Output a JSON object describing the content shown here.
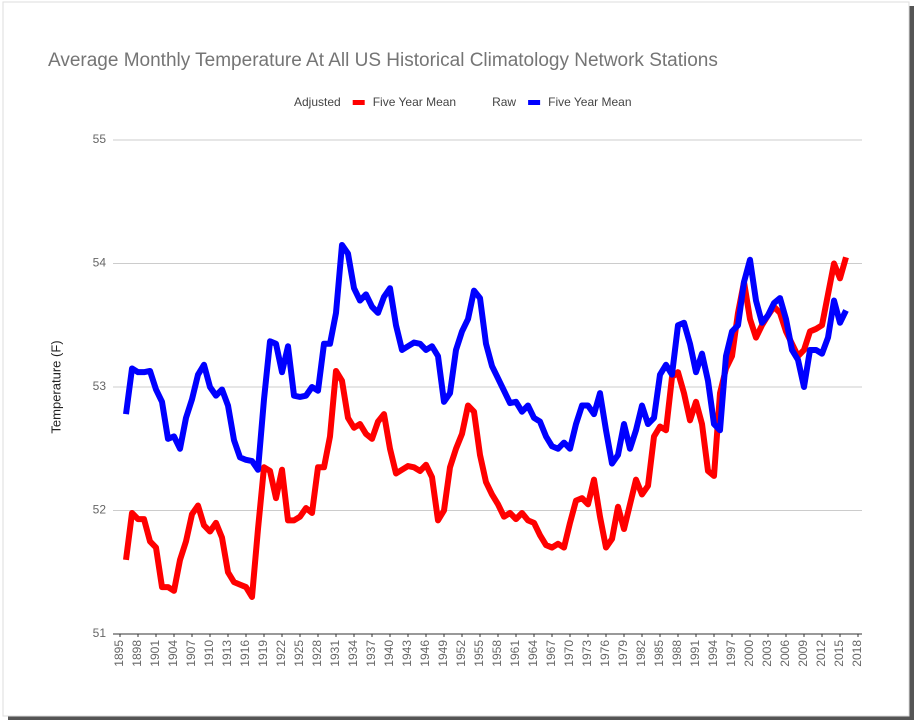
{
  "chart_data": {
    "type": "line",
    "title": "Average Monthly Temperature At All US Historical Climatology Network Stations",
    "y_label": "Temperature (F)",
    "x": [
      1896,
      1897,
      1898,
      1899,
      1900,
      1901,
      1902,
      1903,
      1904,
      1905,
      1906,
      1907,
      1908,
      1909,
      1910,
      1911,
      1912,
      1913,
      1914,
      1915,
      1916,
      1917,
      1918,
      1919,
      1920,
      1921,
      1922,
      1923,
      1924,
      1925,
      1926,
      1927,
      1928,
      1929,
      1930,
      1931,
      1932,
      1933,
      1934,
      1935,
      1936,
      1937,
      1938,
      1939,
      1940,
      1941,
      1942,
      1943,
      1944,
      1945,
      1946,
      1947,
      1948,
      1949,
      1950,
      1951,
      1952,
      1953,
      1954,
      1955,
      1956,
      1957,
      1958,
      1959,
      1960,
      1961,
      1962,
      1963,
      1964,
      1965,
      1966,
      1967,
      1968,
      1969,
      1970,
      1971,
      1972,
      1973,
      1974,
      1975,
      1976,
      1977,
      1978,
      1979,
      1980,
      1981,
      1982,
      1983,
      1984,
      1985,
      1986,
      1987,
      1988,
      1989,
      1990,
      1991,
      1992,
      1993,
      1994,
      1995,
      1996,
      1997,
      1998,
      1999,
      2000,
      2001,
      2002,
      2003,
      2004,
      2005,
      2006,
      2007,
      2008,
      2009,
      2010,
      2011,
      2012,
      2013,
      2014,
      2015,
      2016
    ],
    "series": [
      {
        "group": "Adjusted",
        "name": "Five Year Mean",
        "color": "#ff0000",
        "values": [
          51.6,
          51.98,
          51.93,
          51.93,
          51.75,
          51.7,
          51.38,
          51.38,
          51.35,
          51.6,
          51.75,
          51.97,
          52.04,
          51.88,
          51.83,
          51.9,
          51.78,
          51.5,
          51.42,
          51.4,
          51.38,
          51.3,
          51.85,
          52.35,
          52.32,
          52.1,
          52.33,
          51.92,
          51.92,
          51.95,
          52.02,
          51.98,
          52.35,
          52.35,
          52.6,
          53.13,
          53.05,
          52.75,
          52.67,
          52.7,
          52.62,
          52.58,
          52.72,
          52.78,
          52.5,
          52.3,
          52.33,
          52.36,
          52.35,
          52.32,
          52.37,
          52.27,
          51.92,
          52.0,
          52.35,
          52.5,
          52.62,
          52.85,
          52.8,
          52.45,
          52.23,
          52.13,
          52.05,
          51.95,
          51.98,
          51.93,
          51.98,
          51.92,
          51.9,
          51.8,
          51.72,
          51.7,
          51.73,
          51.7,
          51.9,
          52.08,
          52.1,
          52.05,
          52.25,
          51.95,
          51.7,
          51.77,
          52.03,
          51.85,
          52.05,
          52.25,
          52.13,
          52.2,
          52.6,
          52.68,
          52.65,
          53.08,
          53.12,
          52.95,
          52.73,
          52.88,
          52.7,
          52.32,
          52.28,
          52.95,
          53.15,
          53.25,
          53.6,
          53.85,
          53.55,
          53.4,
          53.5,
          53.58,
          53.65,
          53.6,
          53.45,
          53.35,
          53.25,
          53.3,
          53.45,
          53.47,
          53.5,
          53.75,
          54.0,
          53.88,
          54.05
        ]
      },
      {
        "group": "Raw",
        "name": "Five Year Mean",
        "color": "#0000ff",
        "values": [
          52.78,
          53.15,
          53.12,
          53.12,
          53.13,
          52.98,
          52.88,
          52.58,
          52.6,
          52.5,
          52.75,
          52.9,
          53.1,
          53.18,
          53.0,
          52.93,
          52.98,
          52.85,
          52.57,
          52.43,
          52.41,
          52.4,
          52.33,
          52.9,
          53.37,
          53.35,
          53.12,
          53.33,
          52.93,
          52.92,
          52.93,
          53.0,
          52.97,
          53.35,
          53.35,
          53.6,
          54.15,
          54.08,
          53.8,
          53.7,
          53.75,
          53.65,
          53.6,
          53.73,
          53.8,
          53.5,
          53.3,
          53.33,
          53.36,
          53.35,
          53.3,
          53.33,
          53.25,
          52.88,
          52.95,
          53.3,
          53.45,
          53.55,
          53.78,
          53.72,
          53.35,
          53.17,
          53.07,
          52.97,
          52.87,
          52.88,
          52.8,
          52.85,
          52.75,
          52.72,
          52.6,
          52.52,
          52.5,
          52.55,
          52.5,
          52.7,
          52.85,
          52.85,
          52.78,
          52.95,
          52.65,
          52.38,
          52.45,
          52.7,
          52.5,
          52.65,
          52.85,
          52.7,
          52.75,
          53.1,
          53.18,
          53.1,
          53.5,
          53.52,
          53.35,
          53.12,
          53.27,
          53.05,
          52.7,
          52.65,
          53.25,
          53.45,
          53.5,
          53.85,
          54.03,
          53.7,
          53.52,
          53.58,
          53.68,
          53.72,
          53.55,
          53.3,
          53.22,
          53.0,
          53.3,
          53.3,
          53.27,
          53.4,
          53.7,
          53.52,
          53.62
        ]
      }
    ],
    "xlim": [
      1895,
      2018
    ],
    "xticks": [
      1895,
      1898,
      1901,
      1904,
      1907,
      1910,
      1913,
      1916,
      1919,
      1922,
      1925,
      1928,
      1931,
      1934,
      1937,
      1940,
      1943,
      1946,
      1949,
      1952,
      1955,
      1958,
      1961,
      1964,
      1967,
      1970,
      1973,
      1976,
      1979,
      1982,
      1985,
      1988,
      1991,
      1994,
      1997,
      2000,
      2003,
      2006,
      2009,
      2012,
      2015,
      2018
    ],
    "ylim": [
      51,
      55
    ],
    "yticks": [
      51,
      52,
      53,
      54,
      55
    ],
    "grid": true
  }
}
